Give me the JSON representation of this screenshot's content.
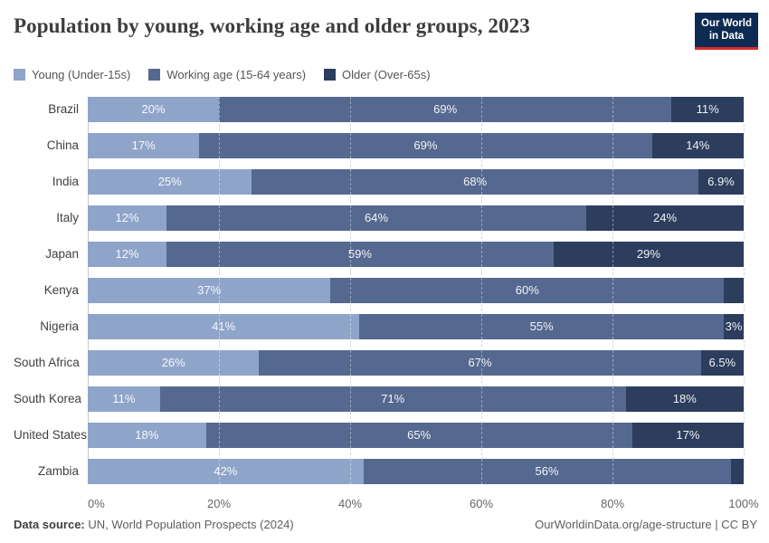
{
  "header": {
    "title": "Population by young, working age and older groups, 2023",
    "logo": {
      "line1": "Our World",
      "line2": "in Data",
      "bg_color": "#0d2a52",
      "accent_color": "#dc2a2a"
    }
  },
  "chart_data": {
    "type": "bar",
    "orientation": "horizontal-stacked",
    "title": "Population by young, working age and older groups, 2023",
    "categories": [
      "Brazil",
      "China",
      "India",
      "Italy",
      "Japan",
      "Kenya",
      "Nigeria",
      "South Africa",
      "South Korea",
      "United States",
      "Zambia"
    ],
    "series": [
      {
        "name": "Young (Under-15s)",
        "color": "#8fa4c9",
        "values": [
          20,
          17,
          25,
          12,
          12,
          37,
          41,
          26,
          11,
          18,
          42
        ],
        "labels": [
          "20%",
          "17%",
          "25%",
          "12%",
          "12%",
          "37%",
          "41%",
          "26%",
          "11%",
          "18%",
          "42%"
        ]
      },
      {
        "name": "Working age (15-64 years)",
        "color": "#55688f",
        "values": [
          69,
          69,
          68,
          64,
          59,
          60,
          55,
          67,
          71,
          65,
          56
        ],
        "labels": [
          "69%",
          "69%",
          "68%",
          "64%",
          "59%",
          "60%",
          "55%",
          "67%",
          "71%",
          "65%",
          "56%"
        ]
      },
      {
        "name": "Older (Over-65s)",
        "color": "#2c3d5d",
        "values": [
          11,
          14,
          6.9,
          24,
          29,
          3,
          3,
          6.5,
          18,
          17,
          2
        ],
        "labels": [
          "11%",
          "14%",
          "6.9%",
          "24%",
          "29%",
          "",
          "3%",
          "6.5%",
          "18%",
          "17%",
          ""
        ]
      }
    ],
    "xlim": [
      0,
      100
    ],
    "x_ticks": [
      {
        "label": "0%",
        "value": 0
      },
      {
        "label": "20%",
        "value": 20
      },
      {
        "label": "40%",
        "value": 40
      },
      {
        "label": "60%",
        "value": 60
      },
      {
        "label": "80%",
        "value": 80
      },
      {
        "label": "100%",
        "value": 100
      }
    ],
    "grid": true,
    "legend_position": "top"
  },
  "footer": {
    "source_label": "Data source:",
    "source_text": " UN, World Population Prospects (2024)",
    "right_text": "OurWorldinData.org/age-structure | CC BY"
  }
}
